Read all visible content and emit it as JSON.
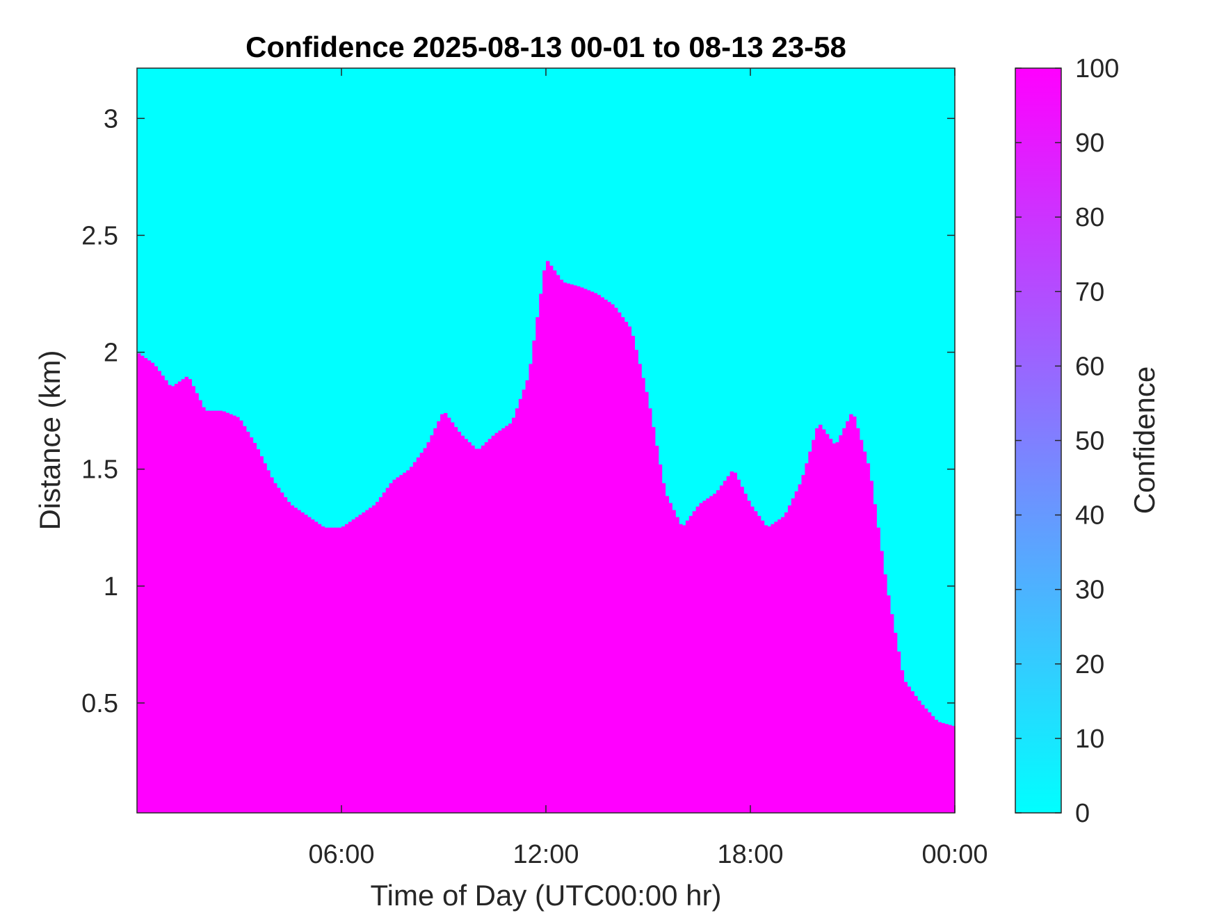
{
  "chart_data": {
    "type": "heatmap",
    "title": "Confidence 2025-08-13 00-01 to 08-13 23-58",
    "xlabel": "Time of Day (UTC00:00 hr)",
    "ylabel": "Distance (km)",
    "xlim_hours": [
      0,
      24
    ],
    "ylim_km": [
      0.03,
      3.215
    ],
    "x_ticks": [
      {
        "value": 6,
        "label": "06:00"
      },
      {
        "value": 12,
        "label": "12:00"
      },
      {
        "value": 18,
        "label": "18:00"
      },
      {
        "value": 24,
        "label": "00:00"
      }
    ],
    "y_ticks": [
      {
        "value": 0.5,
        "label": "0.5"
      },
      {
        "value": 1,
        "label": "1"
      },
      {
        "value": 1.5,
        "label": "1.5"
      },
      {
        "value": 2,
        "label": "2"
      },
      {
        "value": 2.5,
        "label": "2.5"
      },
      {
        "value": 3,
        "label": "3"
      }
    ],
    "colorbar": {
      "label": "Confidence",
      "range": [
        0,
        100
      ],
      "low_color": "#00ffff",
      "high_color": "#ff00ff",
      "ticks": [
        {
          "value": 0,
          "label": "0"
        },
        {
          "value": 10,
          "label": "10"
        },
        {
          "value": 20,
          "label": "20"
        },
        {
          "value": 30,
          "label": "30"
        },
        {
          "value": 40,
          "label": "40"
        },
        {
          "value": 50,
          "label": "50"
        },
        {
          "value": 60,
          "label": "60"
        },
        {
          "value": 70,
          "label": "70"
        },
        {
          "value": 80,
          "label": "80"
        },
        {
          "value": 90,
          "label": "90"
        },
        {
          "value": 100,
          "label": "100"
        }
      ]
    },
    "high_confidence_top_km": {
      "hour": [
        0,
        0.5,
        1,
        1.5,
        2,
        2.5,
        3,
        3.5,
        4,
        4.5,
        5,
        5.5,
        6,
        6.5,
        7,
        7.5,
        8,
        8.5,
        9,
        9.5,
        10,
        10.5,
        11,
        11.5,
        12,
        12.5,
        13,
        13.5,
        14,
        14.5,
        15,
        15.5,
        16,
        16.5,
        17,
        17.5,
        18,
        18.5,
        19,
        19.5,
        20,
        20.5,
        21,
        21.5,
        22,
        22.5,
        23,
        23.5,
        24
      ],
      "top": [
        2.0,
        1.95,
        1.85,
        1.9,
        1.75,
        1.75,
        1.72,
        1.6,
        1.45,
        1.35,
        1.3,
        1.25,
        1.25,
        1.3,
        1.35,
        1.45,
        1.5,
        1.6,
        1.75,
        1.65,
        1.58,
        1.65,
        1.7,
        1.9,
        2.4,
        2.3,
        2.28,
        2.25,
        2.2,
        2.1,
        1.8,
        1.4,
        1.25,
        1.35,
        1.4,
        1.5,
        1.35,
        1.25,
        1.3,
        1.45,
        1.7,
        1.6,
        1.75,
        1.5,
        1.0,
        0.6,
        0.5,
        0.42,
        0.4
      ]
    }
  }
}
